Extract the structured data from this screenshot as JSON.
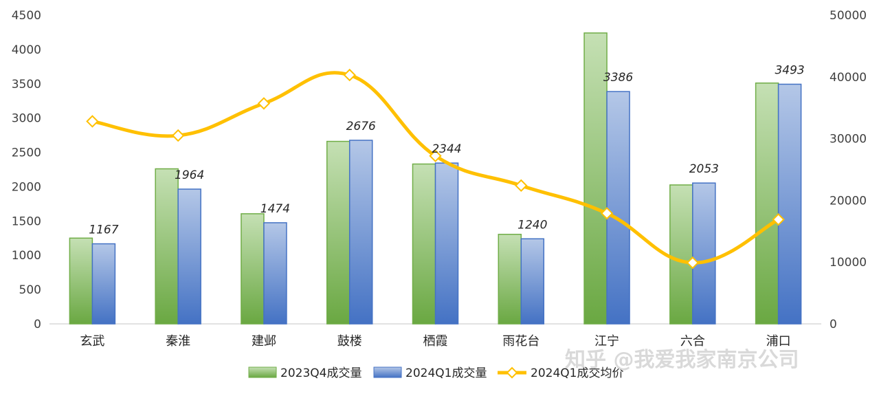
{
  "chart_data": {
    "type": "bar",
    "categories": [
      "玄武",
      "秦淮",
      "建邺",
      "鼓楼",
      "栖霞",
      "雨花台",
      "江宁",
      "六合",
      "浦口"
    ],
    "series": [
      {
        "name": "2023Q4成交量",
        "kind": "bar",
        "axis": "left",
        "color": "#70ad47",
        "values": [
          1250,
          2260,
          1605,
          2660,
          2330,
          1305,
          4240,
          2025,
          3510
        ]
      },
      {
        "name": "2024Q1成交量",
        "kind": "bar",
        "axis": "left",
        "color": "#4472c4",
        "values": [
          1167,
          1964,
          1474,
          2676,
          2344,
          1240,
          3386,
          2053,
          3493
        ],
        "labels": [
          "1167",
          "1964",
          "1474",
          "2676",
          "2344",
          "1240",
          "3386",
          "2053",
          "3493"
        ]
      },
      {
        "name": "2024Q1成交均价",
        "kind": "line",
        "axis": "right",
        "color": "#ffc000",
        "values": [
          32800,
          30500,
          35700,
          40300,
          27200,
          22400,
          17900,
          9900,
          16900
        ]
      }
    ],
    "left_axis": {
      "ylim": [
        0,
        4500
      ],
      "ticks": [
        "0",
        "500",
        "1000",
        "1500",
        "2000",
        "2500",
        "3000",
        "3500",
        "4000",
        "4500"
      ]
    },
    "right_axis": {
      "ylim": [
        0,
        50000
      ],
      "ticks": [
        "0",
        "10000",
        "20000",
        "30000",
        "40000",
        "50000"
      ]
    },
    "legend_position": "bottom",
    "grid": false
  },
  "watermark": "知乎 @我爱我家南京公司"
}
